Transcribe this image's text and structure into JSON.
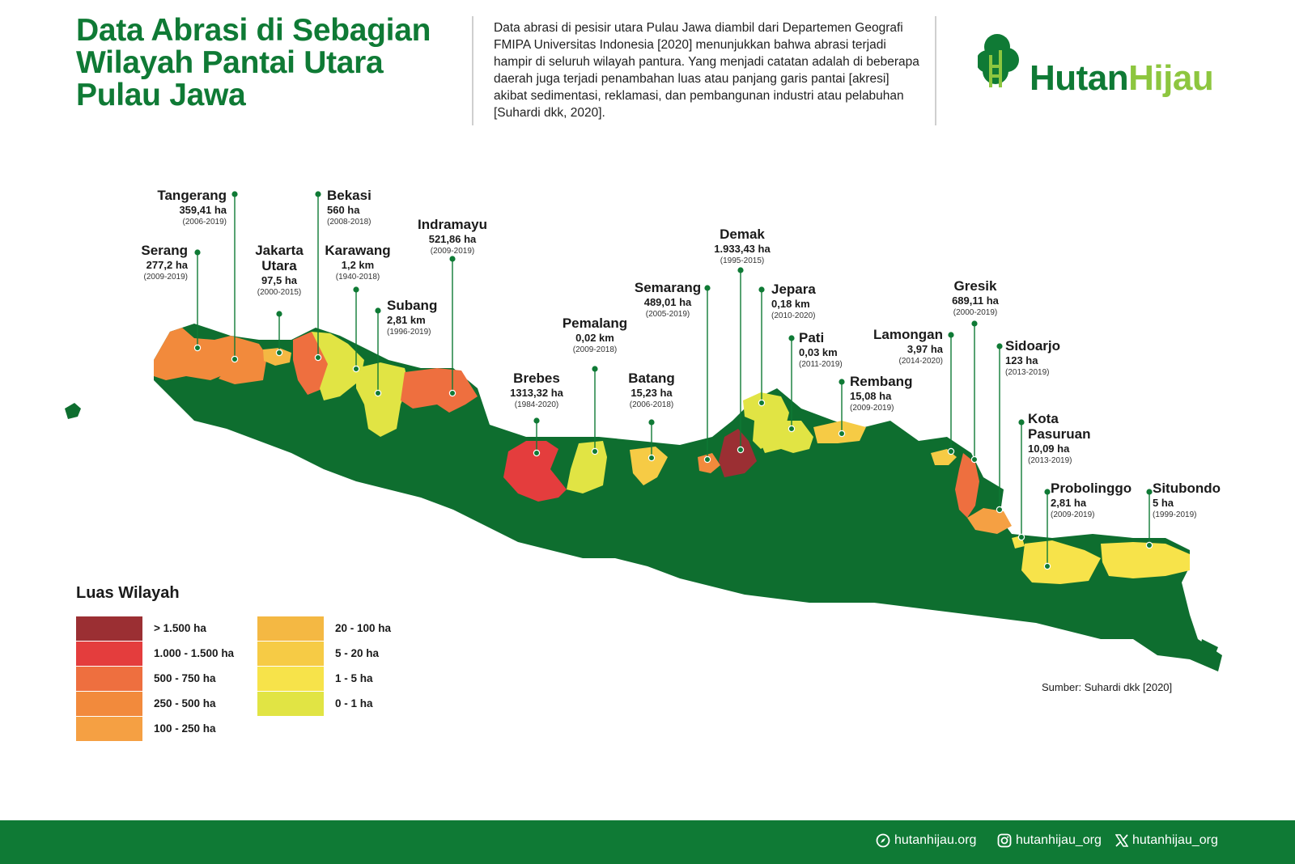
{
  "title": "Data Abrasi di Sebagian Wilayah Pantai Utara Pulau Jawa",
  "intro": "Data abrasi di pesisir utara Pulau Jawa diambil dari Departemen Geografi FMIPA Universitas Indonesia [2020] menunjukkan bahwa abrasi terjadi hampir di seluruh wilayah pantura. Yang menjadi catatan adalah di beberapa daerah juga terjadi penambahan luas atau panjang garis pantai [akresi] akibat sedimentasi, reklamasi, dan pembangunan industri atau pelabuhan [Suhardi dkk, 2020].",
  "logo": {
    "word_a": "Hutan",
    "word_b": "Hijau",
    "icon": "tree-logo-icon"
  },
  "regions": [
    {
      "name": "Tangerang",
      "value": "359,41 ha",
      "years": "(2006-2019)",
      "class": "250 - 500 ha"
    },
    {
      "name": "Serang",
      "value": "277,2 ha",
      "years": "(2009-2019)",
      "class": "250 - 500 ha"
    },
    {
      "name": "Jakarta Utara",
      "value": "97,5 ha",
      "years": "(2000-2015)",
      "class": "20 - 100 ha"
    },
    {
      "name": "Bekasi",
      "value": "560 ha",
      "years": "(2008-2018)",
      "class": "500 - 750 ha"
    },
    {
      "name": "Karawang",
      "value": "1,2 km",
      "years": "(1940-2018)",
      "class": "0 - 1 ha"
    },
    {
      "name": "Subang",
      "value": "2,81 km",
      "years": "(1996-2019)",
      "class": "0 - 1 ha"
    },
    {
      "name": "Indramayu",
      "value": "521,86 ha",
      "years": "(2009-2019)",
      "class": "500 - 750 ha"
    },
    {
      "name": "Brebes",
      "value": "1313,32 ha",
      "years": "(1984-2020)",
      "class": "1.000 - 1.500 ha"
    },
    {
      "name": "Pemalang",
      "value": "0,02 km",
      "years": "(2009-2018)",
      "class": "0 - 1 ha"
    },
    {
      "name": "Batang",
      "value": "15,23 ha",
      "years": "(2006-2018)",
      "class": "5 - 20 ha"
    },
    {
      "name": "Semarang",
      "value": "489,01 ha",
      "years": "(2005-2019)",
      "class": "250 - 500 ha"
    },
    {
      "name": "Demak",
      "value": "1.933,43 ha",
      "years": "(1995-2015)",
      "class": "> 1.500 ha"
    },
    {
      "name": "Jepara",
      "value": "0,18 km",
      "years": "(2010-2020)",
      "class": "0 - 1 ha"
    },
    {
      "name": "Pati",
      "value": "0,03 km",
      "years": "(2011-2019)",
      "class": "0 - 1 ha"
    },
    {
      "name": "Rembang",
      "value": "15,08 ha",
      "years": "(2009-2019)",
      "class": "5 - 20 ha"
    },
    {
      "name": "Lamongan",
      "value": "3,97 ha",
      "years": "(2014-2020)",
      "class": "1 - 5 ha"
    },
    {
      "name": "Gresik",
      "value": "689,11 ha",
      "years": "(2000-2019)",
      "class": "500 - 750 ha"
    },
    {
      "name": "Sidoarjo",
      "value": "123 ha",
      "years": "(2013-2019)",
      "class": "100 - 250 ha"
    },
    {
      "name": "Kota Pasuruan",
      "value": "10,09 ha",
      "years": "(2013-2019)",
      "class": "5 - 20 ha"
    },
    {
      "name": "Probolinggo",
      "value": "2,81 ha",
      "years": "(2009-2019)",
      "class": "1 - 5 ha"
    },
    {
      "name": "Situbondo",
      "value": "5 ha",
      "years": "(1999-2019)",
      "class": "1 - 5 ha"
    }
  ],
  "legend": {
    "title": "Luas Wilayah",
    "items": [
      {
        "label": "> 1.500 ha",
        "color": "#9b2f33"
      },
      {
        "label": "1.000 - 1.500 ha",
        "color": "#e43d3d"
      },
      {
        "label": "500 - 750 ha",
        "color": "#ee6f3f"
      },
      {
        "label": "250 - 500 ha",
        "color": "#f28a3c"
      },
      {
        "label": "100 - 250 ha",
        "color": "#f5a043"
      },
      {
        "label": "20 - 100 ha",
        "color": "#f4b843"
      },
      {
        "label": "5 - 20 ha",
        "color": "#f6cb45"
      },
      {
        "label": "1 - 5 ha",
        "color": "#f7e34a"
      },
      {
        "label": "0 - 1 ha",
        "color": "#e1e444"
      }
    ]
  },
  "source": "Sumber: Suhardi dkk [2020]",
  "footer": {
    "website": "hutanhijau.org",
    "instagram": "hutanhijau_org",
    "x": "hutanhijau_org"
  },
  "colors": {
    "brand_green": "#0f7a35",
    "brand_light": "#8dc63f",
    "land": "#0e6e2f"
  }
}
